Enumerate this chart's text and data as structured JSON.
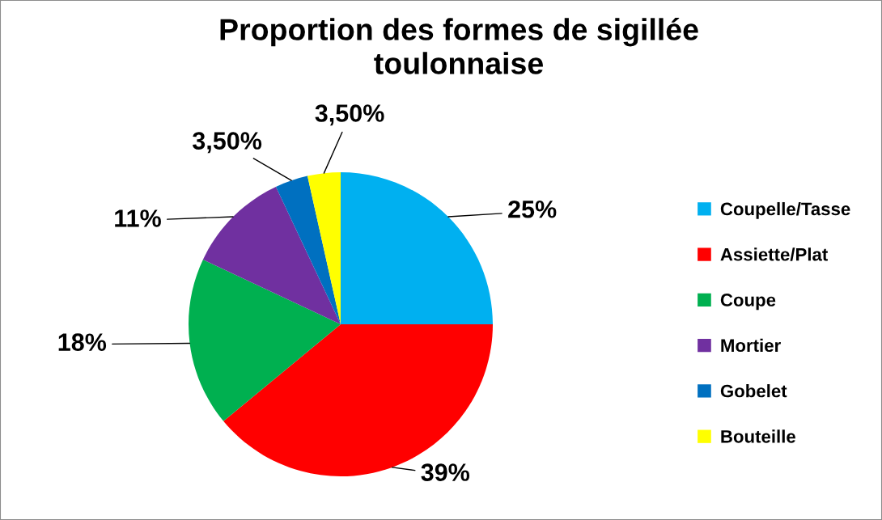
{
  "chart_data": {
    "type": "pie",
    "title": "Proportion des formes de sigillée toulonnaise",
    "categories": [
      "Coupelle/Tasse",
      "Assiette/Plat",
      "Coupe",
      "Mortier",
      "Gobelet",
      "Bouteille"
    ],
    "values": [
      25,
      39,
      18,
      11,
      3.5,
      3.5
    ],
    "value_labels": [
      "25%",
      "39%",
      "18%",
      "11%",
      "3,50%",
      "3,50%"
    ],
    "colors": [
      "#00b0f0",
      "#ff0000",
      "#00b050",
      "#7030a0",
      "#0070c0",
      "#ffff00"
    ],
    "legend": "right"
  }
}
